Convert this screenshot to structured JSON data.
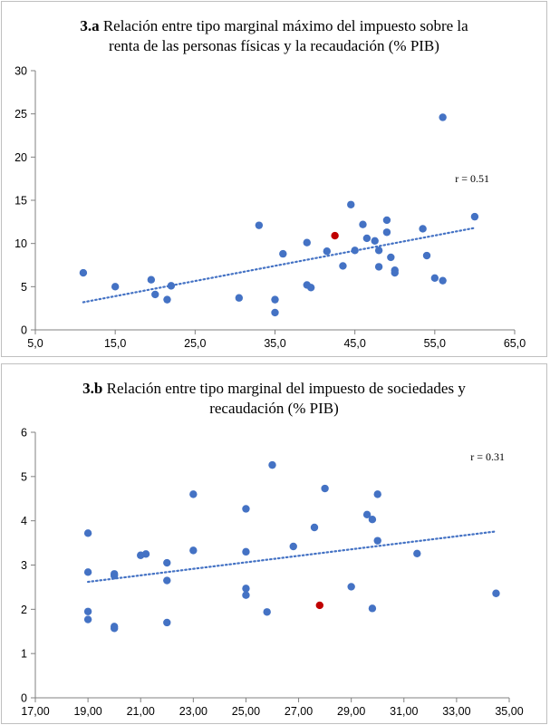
{
  "chart_data": [
    {
      "type": "scatter",
      "title_prefix": "3.a",
      "title_line1": "Relación entre tipo marginal máximo del impuesto sobre la",
      "title_line2": "renta de las personas físicas y la recaudación (% PIB)",
      "xlim": [
        5,
        65
      ],
      "ylim": [
        0,
        30
      ],
      "xticks": [
        "5,0",
        "15,0",
        "25,0",
        "35,0",
        "45,0",
        "55,0",
        "65,0"
      ],
      "yticks": [
        "0",
        "5",
        "10",
        "15",
        "20",
        "25",
        "30"
      ],
      "annotation": "r = 0.51",
      "trendline": {
        "x": [
          11,
          60
        ],
        "y": [
          3.2,
          11.8
        ]
      },
      "colors": {
        "point": "#4472c4",
        "highlight": "#c00000",
        "trend": "#4472c4",
        "axis": "#808080"
      },
      "series": [
        {
          "role": "countries",
          "x": [
            11,
            15,
            19.5,
            20,
            21.5,
            22,
            30.5,
            33,
            35,
            35,
            36,
            39,
            39,
            39.5,
            41.5,
            43.5,
            44.5,
            45,
            46,
            46.5,
            47.5,
            48,
            48,
            49,
            49,
            49.5,
            50,
            50,
            53.5,
            54,
            55,
            56,
            56,
            60
          ],
          "y": [
            6.6,
            5.0,
            5.8,
            4.1,
            3.5,
            5.1,
            3.7,
            12.1,
            3.5,
            2.0,
            8.8,
            10.1,
            5.2,
            4.9,
            9.1,
            7.4,
            14.5,
            9.2,
            12.2,
            10.6,
            10.3,
            9.2,
            7.3,
            11.3,
            12.7,
            8.4,
            6.9,
            6.6,
            11.7,
            8.6,
            6.0,
            5.7,
            24.6,
            13.1
          ]
        },
        {
          "role": "highlight",
          "x": [
            42.5
          ],
          "y": [
            10.9
          ]
        }
      ]
    },
    {
      "type": "scatter",
      "title_prefix": "3.b",
      "title_line1": "Relación entre tipo marginal del impuesto de sociedades y",
      "title_line2": "recaudación (% PIB)",
      "xlim": [
        17,
        35
      ],
      "ylim": [
        0,
        6
      ],
      "xticks": [
        "17,00",
        "19,00",
        "21,00",
        "23,00",
        "25,00",
        "27,00",
        "29,00",
        "31,00",
        "33,00",
        "35,00"
      ],
      "yticks": [
        "0",
        "1",
        "2",
        "3",
        "4",
        "5",
        "6"
      ],
      "annotation": "r = 0.31",
      "trendline": {
        "x": [
          19,
          34.5
        ],
        "y": [
          2.62,
          3.76
        ]
      },
      "colors": {
        "point": "#4472c4",
        "highlight": "#c00000",
        "trend": "#4472c4",
        "axis": "#808080"
      },
      "series": [
        {
          "role": "countries",
          "x": [
            19,
            19,
            19,
            19,
            20,
            20,
            20,
            20,
            21,
            21.2,
            22,
            22,
            22,
            23,
            23,
            25,
            25,
            25,
            25,
            25.8,
            26,
            26.8,
            27.6,
            28,
            29,
            29.6,
            29.8,
            29.8,
            30,
            30,
            31.5,
            34.5
          ],
          "y": [
            3.72,
            2.84,
            1.95,
            1.77,
            2.8,
            2.76,
            1.61,
            1.57,
            3.22,
            3.25,
            3.05,
            2.65,
            1.7,
            4.6,
            3.33,
            4.27,
            3.3,
            2.47,
            2.32,
            1.94,
            5.26,
            3.42,
            3.85,
            4.73,
            2.51,
            4.14,
            4.03,
            2.02,
            4.6,
            3.55,
            3.26,
            2.36
          ]
        },
        {
          "role": "highlight",
          "x": [
            27.8
          ],
          "y": [
            2.09
          ]
        }
      ]
    }
  ]
}
